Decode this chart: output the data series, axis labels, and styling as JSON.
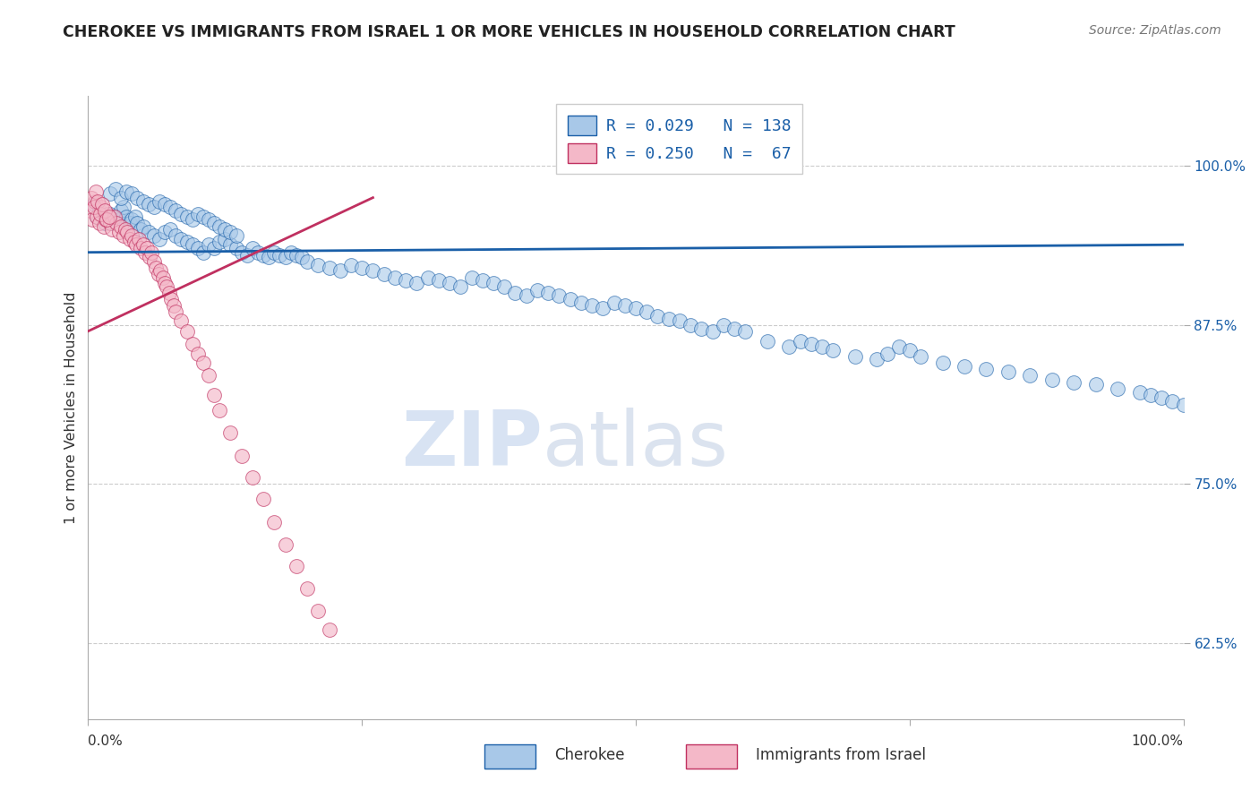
{
  "title": "CHEROKEE VS IMMIGRANTS FROM ISRAEL 1 OR MORE VEHICLES IN HOUSEHOLD CORRELATION CHART",
  "source": "Source: ZipAtlas.com",
  "ylabel": "1 or more Vehicles in Household",
  "legend_label_1": "Cherokee",
  "legend_label_2": "Immigrants from Israel",
  "blue_color": "#a8c8e8",
  "pink_color": "#f4b8c8",
  "blue_line_color": "#1a5fa8",
  "pink_line_color": "#c03060",
  "watermark_zip": "ZIP",
  "watermark_atlas": "atlas",
  "ytick_labels": [
    "62.5%",
    "75.0%",
    "87.5%",
    "100.0%"
  ],
  "ytick_values": [
    0.625,
    0.75,
    0.875,
    1.0
  ],
  "xmin": 0.0,
  "xmax": 1.0,
  "ymin": 0.565,
  "ymax": 1.055,
  "blue_R": 0.029,
  "blue_N": 138,
  "pink_R": 0.25,
  "pink_N": 67,
  "blue_line_x0": 0.0,
  "blue_line_x1": 1.0,
  "blue_line_y0": 0.932,
  "blue_line_y1": 0.938,
  "pink_line_x0": 0.0,
  "pink_line_x1": 0.26,
  "pink_line_y0": 0.87,
  "pink_line_y1": 0.975,
  "blue_scatter_x": [
    0.005,
    0.008,
    0.01,
    0.015,
    0.018,
    0.02,
    0.022,
    0.025,
    0.028,
    0.03,
    0.032,
    0.035,
    0.038,
    0.04,
    0.043,
    0.045,
    0.048,
    0.05,
    0.055,
    0.06,
    0.065,
    0.07,
    0.075,
    0.08,
    0.085,
    0.09,
    0.095,
    0.1,
    0.105,
    0.11,
    0.115,
    0.12,
    0.125,
    0.13,
    0.135,
    0.14,
    0.145,
    0.15,
    0.155,
    0.16,
    0.165,
    0.17,
    0.175,
    0.18,
    0.185,
    0.19,
    0.195,
    0.2,
    0.21,
    0.22,
    0.23,
    0.24,
    0.25,
    0.26,
    0.27,
    0.28,
    0.29,
    0.3,
    0.31,
    0.32,
    0.33,
    0.34,
    0.35,
    0.36,
    0.37,
    0.38,
    0.39,
    0.4,
    0.41,
    0.42,
    0.43,
    0.44,
    0.45,
    0.46,
    0.47,
    0.48,
    0.49,
    0.5,
    0.51,
    0.52,
    0.53,
    0.54,
    0.55,
    0.56,
    0.57,
    0.58,
    0.59,
    0.6,
    0.62,
    0.64,
    0.65,
    0.66,
    0.67,
    0.68,
    0.7,
    0.72,
    0.73,
    0.74,
    0.75,
    0.76,
    0.78,
    0.8,
    0.82,
    0.84,
    0.86,
    0.88,
    0.9,
    0.92,
    0.94,
    0.96,
    0.97,
    0.98,
    0.99,
    1.0,
    0.02,
    0.025,
    0.03,
    0.035,
    0.04,
    0.045,
    0.05,
    0.055,
    0.06,
    0.065,
    0.07,
    0.075,
    0.08,
    0.085,
    0.09,
    0.095,
    0.1,
    0.105,
    0.11,
    0.115,
    0.12,
    0.125,
    0.13,
    0.135
  ],
  "blue_scatter_y": [
    0.97,
    0.96,
    0.965,
    0.955,
    0.958,
    0.962,
    0.955,
    0.96,
    0.958,
    0.965,
    0.968,
    0.96,
    0.955,
    0.958,
    0.96,
    0.955,
    0.95,
    0.952,
    0.948,
    0.945,
    0.942,
    0.948,
    0.95,
    0.945,
    0.942,
    0.94,
    0.938,
    0.935,
    0.932,
    0.938,
    0.935,
    0.94,
    0.942,
    0.938,
    0.935,
    0.932,
    0.93,
    0.935,
    0.932,
    0.93,
    0.928,
    0.932,
    0.93,
    0.928,
    0.932,
    0.93,
    0.928,
    0.925,
    0.922,
    0.92,
    0.918,
    0.922,
    0.92,
    0.918,
    0.915,
    0.912,
    0.91,
    0.908,
    0.912,
    0.91,
    0.908,
    0.905,
    0.912,
    0.91,
    0.908,
    0.905,
    0.9,
    0.898,
    0.902,
    0.9,
    0.898,
    0.895,
    0.892,
    0.89,
    0.888,
    0.892,
    0.89,
    0.888,
    0.885,
    0.882,
    0.88,
    0.878,
    0.875,
    0.872,
    0.87,
    0.875,
    0.872,
    0.87,
    0.862,
    0.858,
    0.862,
    0.86,
    0.858,
    0.855,
    0.85,
    0.848,
    0.852,
    0.858,
    0.855,
    0.85,
    0.845,
    0.842,
    0.84,
    0.838,
    0.835,
    0.832,
    0.83,
    0.828,
    0.825,
    0.822,
    0.82,
    0.818,
    0.815,
    0.812,
    0.978,
    0.982,
    0.975,
    0.98,
    0.978,
    0.975,
    0.972,
    0.97,
    0.968,
    0.972,
    0.97,
    0.968,
    0.965,
    0.962,
    0.96,
    0.958,
    0.962,
    0.96,
    0.958,
    0.955,
    0.952,
    0.95,
    0.948,
    0.945
  ],
  "pink_scatter_x": [
    0.002,
    0.004,
    0.006,
    0.008,
    0.01,
    0.012,
    0.014,
    0.016,
    0.018,
    0.02,
    0.022,
    0.024,
    0.026,
    0.028,
    0.03,
    0.032,
    0.034,
    0.036,
    0.038,
    0.04,
    0.042,
    0.044,
    0.046,
    0.048,
    0.05,
    0.052,
    0.054,
    0.056,
    0.058,
    0.06,
    0.062,
    0.064,
    0.066,
    0.068,
    0.07,
    0.072,
    0.074,
    0.076,
    0.078,
    0.08,
    0.085,
    0.09,
    0.095,
    0.1,
    0.105,
    0.11,
    0.115,
    0.12,
    0.13,
    0.14,
    0.15,
    0.16,
    0.17,
    0.18,
    0.19,
    0.2,
    0.21,
    0.22,
    0.003,
    0.005,
    0.007,
    0.009,
    0.011,
    0.013,
    0.015,
    0.017,
    0.019
  ],
  "pink_scatter_y": [
    0.965,
    0.958,
    0.972,
    0.96,
    0.955,
    0.968,
    0.952,
    0.958,
    0.962,
    0.955,
    0.95,
    0.96,
    0.955,
    0.948,
    0.952,
    0.945,
    0.95,
    0.948,
    0.942,
    0.945,
    0.94,
    0.938,
    0.942,
    0.935,
    0.938,
    0.932,
    0.935,
    0.928,
    0.932,
    0.925,
    0.92,
    0.915,
    0.918,
    0.912,
    0.908,
    0.905,
    0.9,
    0.895,
    0.89,
    0.885,
    0.878,
    0.87,
    0.86,
    0.852,
    0.845,
    0.835,
    0.82,
    0.808,
    0.79,
    0.772,
    0.755,
    0.738,
    0.72,
    0.702,
    0.685,
    0.668,
    0.65,
    0.635,
    0.975,
    0.968,
    0.98,
    0.972,
    0.962,
    0.97,
    0.965,
    0.958,
    0.96
  ]
}
